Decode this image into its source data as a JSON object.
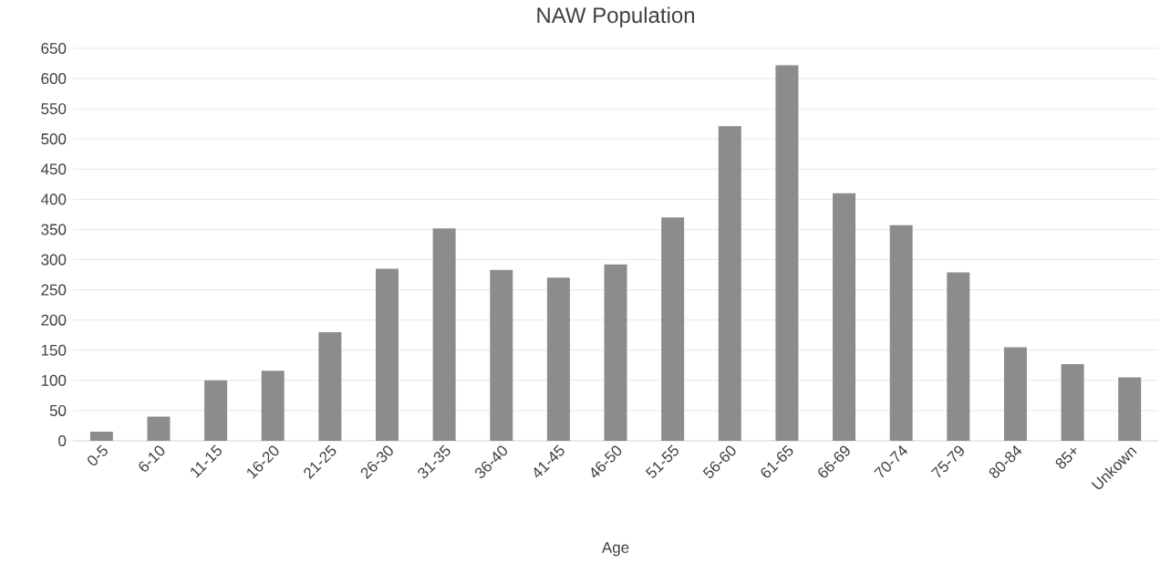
{
  "chart_data": {
    "type": "bar",
    "title": "NAW Population",
    "xlabel": "Age",
    "categories": [
      "0-5",
      "6-10",
      "11-15",
      "16-20",
      "21-25",
      "26-30",
      "31-35",
      "36-40",
      "41-45",
      "46-50",
      "51-55",
      "56-60",
      "61-65",
      "66-69",
      "70-74",
      "75-79",
      "80-84",
      "85+",
      "Unkown"
    ],
    "values": [
      15,
      40,
      100,
      116,
      180,
      285,
      352,
      283,
      270,
      292,
      370,
      521,
      622,
      410,
      357,
      279,
      155,
      127,
      105
    ],
    "color": "#8c8c8c",
    "ylim": [
      0,
      650
    ],
    "yticks": [
      0,
      50,
      100,
      150,
      200,
      250,
      300,
      350,
      400,
      450,
      500,
      550,
      600,
      650
    ],
    "grid": "y"
  }
}
